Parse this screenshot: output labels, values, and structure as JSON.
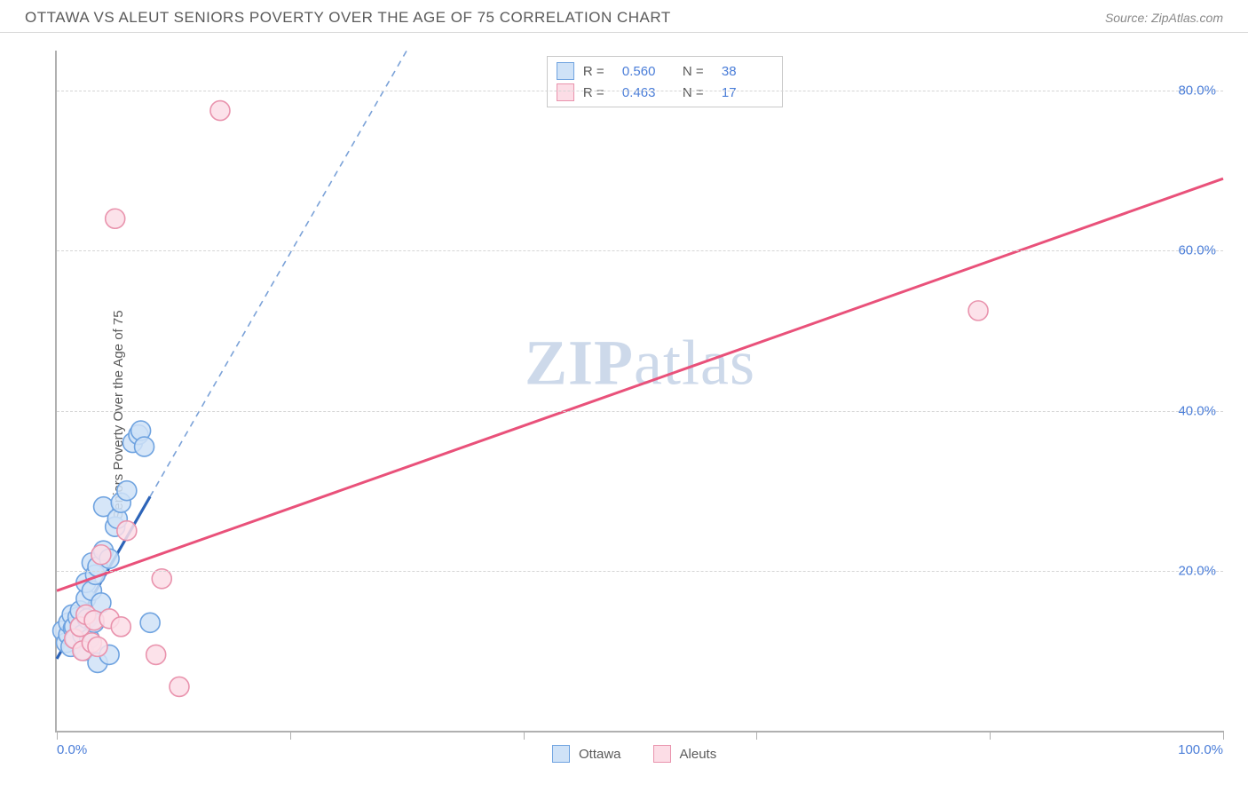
{
  "header": {
    "title": "OTTAWA VS ALEUT SENIORS POVERTY OVER THE AGE OF 75 CORRELATION CHART",
    "source": "Source: ZipAtlas.com"
  },
  "watermark": {
    "left": "ZIP",
    "right": "atlas"
  },
  "chart": {
    "type": "scatter",
    "ylabel": "Seniors Poverty Over the Age of 75",
    "xlim": [
      0,
      100
    ],
    "ylim": [
      0,
      85
    ],
    "xticks": [
      0,
      20,
      40,
      60,
      80,
      100
    ],
    "xtick_labels_shown": {
      "0": "0.0%",
      "100": "100.0%"
    },
    "yticks": [
      20,
      40,
      60,
      80
    ],
    "ytick_labels": {
      "20": "20.0%",
      "40": "40.0%",
      "60": "60.0%",
      "80": "80.0%"
    },
    "grid_color": "#d5d5d5",
    "axis_color": "#b0b0b0",
    "background_color": "#ffffff",
    "tick_label_color": "#4a7dd8",
    "series": [
      {
        "name": "Ottawa",
        "marker_fill": "#cfe2f7",
        "marker_stroke": "#6fa3e0",
        "marker_radius": 11,
        "line_color": "#2d64b8",
        "line_dash_color": "#7ba2d8",
        "R": "0.560",
        "N": "38",
        "trend": {
          "x1": 0,
          "y1": 9,
          "x2": 30,
          "y2": 85,
          "solid_until_x": 8
        },
        "points": [
          [
            0.5,
            12.5
          ],
          [
            0.8,
            11.0
          ],
          [
            1.0,
            12.0
          ],
          [
            1.0,
            13.5
          ],
          [
            1.2,
            10.5
          ],
          [
            1.3,
            14.5
          ],
          [
            1.4,
            12.8
          ],
          [
            1.5,
            13.0
          ],
          [
            1.6,
            11.5
          ],
          [
            1.8,
            14.2
          ],
          [
            2.0,
            13.0
          ],
          [
            2.0,
            15.0
          ],
          [
            2.2,
            12.0
          ],
          [
            2.3,
            10.0
          ],
          [
            2.5,
            16.5
          ],
          [
            2.5,
            18.5
          ],
          [
            2.6,
            14.0
          ],
          [
            2.8,
            11.5
          ],
          [
            3.0,
            17.5
          ],
          [
            3.0,
            21.0
          ],
          [
            3.2,
            13.5
          ],
          [
            3.3,
            19.5
          ],
          [
            3.5,
            8.5
          ],
          [
            3.5,
            20.5
          ],
          [
            3.8,
            16.0
          ],
          [
            4.0,
            22.5
          ],
          [
            4.0,
            28.0
          ],
          [
            4.5,
            9.5
          ],
          [
            4.5,
            21.5
          ],
          [
            5.0,
            25.5
          ],
          [
            5.2,
            26.5
          ],
          [
            5.5,
            28.5
          ],
          [
            6.0,
            30.0
          ],
          [
            6.5,
            36.0
          ],
          [
            7.0,
            37.0
          ],
          [
            7.2,
            37.5
          ],
          [
            7.5,
            35.5
          ],
          [
            8.0,
            13.5
          ]
        ]
      },
      {
        "name": "Aleuts",
        "marker_fill": "#fcdde6",
        "marker_stroke": "#e993ad",
        "marker_radius": 11,
        "line_color": "#e9517a",
        "R": "0.463",
        "N": "17",
        "trend": {
          "x1": 0,
          "y1": 17.5,
          "x2": 100,
          "y2": 69
        },
        "points": [
          [
            1.5,
            11.5
          ],
          [
            2.0,
            13.0
          ],
          [
            2.2,
            10.0
          ],
          [
            2.5,
            14.5
          ],
          [
            3.0,
            11.0
          ],
          [
            3.2,
            13.8
          ],
          [
            3.5,
            10.5
          ],
          [
            3.8,
            22.0
          ],
          [
            4.5,
            14.0
          ],
          [
            5.5,
            13.0
          ],
          [
            6.0,
            25.0
          ],
          [
            8.5,
            9.5
          ],
          [
            9.0,
            19.0
          ],
          [
            10.5,
            5.5
          ],
          [
            5.0,
            64.0
          ],
          [
            14.0,
            77.5
          ],
          [
            79.0,
            52.5
          ]
        ]
      }
    ],
    "legend_bottom": [
      {
        "label": "Ottawa",
        "fill": "#cfe2f7",
        "stroke": "#6fa3e0"
      },
      {
        "label": "Aleuts",
        "fill": "#fcdde6",
        "stroke": "#e993ad"
      }
    ]
  }
}
